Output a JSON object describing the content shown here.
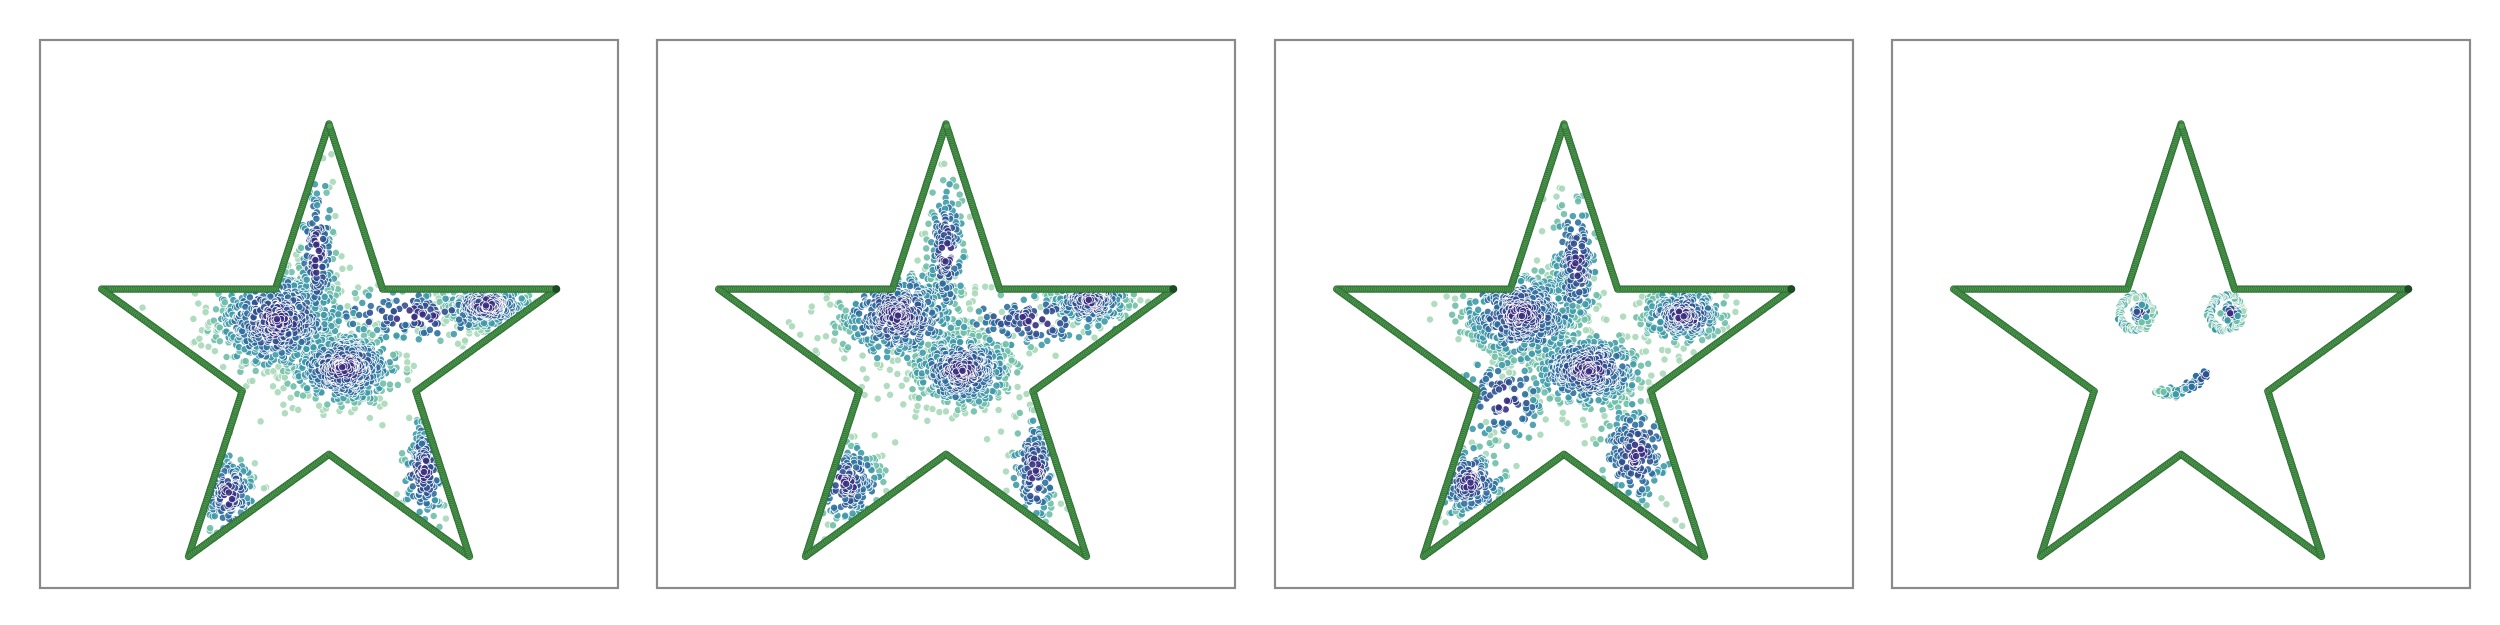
{
  "chart_data": [
    {
      "type": "scatter",
      "panel": "1",
      "title": "",
      "xlabel": "",
      "ylabel": "",
      "grid": false,
      "legend": "none",
      "series": [
        {
          "role": "star-boundary",
          "color": "#4f9a4f",
          "edge_color": "#2e6f34",
          "points": [
            [
              0.0,
              1.0
            ],
            [
              -0.2245,
              0.309
            ],
            [
              -0.9511,
              0.309
            ],
            [
              -0.3633,
              -0.118
            ],
            [
              -0.5878,
              -0.809
            ],
            [
              0.0,
              -0.382
            ],
            [
              0.5878,
              -0.809
            ],
            [
              0.3633,
              -0.118
            ],
            [
              0.9511,
              0.309
            ],
            [
              0.2245,
              0.309
            ],
            [
              0.0,
              1.0
            ]
          ]
        },
        {
          "role": "density-clusters",
          "colormap": [
            "#a8d8b8",
            "#6fbfa9",
            "#3f9aa8",
            "#2f6f9f",
            "#30508f",
            "#3a2f7f"
          ],
          "clusters": [
            {
              "cx": -0.215,
              "cy": 0.18,
              "sx": 0.14,
              "sy": 0.11,
              "n": 620
            },
            {
              "cx": 0.06,
              "cy": -0.02,
              "sx": 0.12,
              "sy": 0.08,
              "n": 560
            },
            {
              "cx": 0.66,
              "cy": 0.24,
              "sx": 0.09,
              "sy": 0.05,
              "n": 300
            },
            {
              "cx": -0.05,
              "cy": 0.45,
              "sx": 0.04,
              "sy": 0.17,
              "n": 180
            },
            {
              "cx": -0.42,
              "cy": -0.55,
              "sx": 0.06,
              "sy": 0.09,
              "n": 150
            },
            {
              "cx": 0.4,
              "cy": -0.45,
              "sx": 0.05,
              "sy": 0.12,
              "n": 160
            },
            {
              "cx": 0.35,
              "cy": 0.2,
              "sx": 0.2,
              "sy": 0.06,
              "n": 140
            }
          ]
        }
      ]
    },
    {
      "type": "scatter",
      "panel": "2",
      "title": "",
      "xlabel": "",
      "ylabel": "",
      "grid": false,
      "legend": "none",
      "series": [
        {
          "role": "star-boundary",
          "color": "#4f9a4f",
          "edge_color": "#2e6f34",
          "points": [
            [
              0.0,
              1.0
            ],
            [
              -0.2245,
              0.309
            ],
            [
              -0.9511,
              0.309
            ],
            [
              -0.3633,
              -0.118
            ],
            [
              -0.5878,
              -0.809
            ],
            [
              0.0,
              -0.382
            ],
            [
              0.5878,
              -0.809
            ],
            [
              0.3633,
              -0.118
            ],
            [
              0.9511,
              0.309
            ],
            [
              0.2245,
              0.309
            ],
            [
              0.0,
              1.0
            ]
          ]
        },
        {
          "role": "density-clusters",
          "colormap": [
            "#a8d8b8",
            "#6fbfa9",
            "#3f9aa8",
            "#2f6f9f",
            "#30508f",
            "#3a2f7f"
          ],
          "clusters": [
            {
              "cx": -0.2,
              "cy": 0.2,
              "sx": 0.13,
              "sy": 0.1,
              "n": 560
            },
            {
              "cx": 0.07,
              "cy": -0.03,
              "sx": 0.11,
              "sy": 0.08,
              "n": 480
            },
            {
              "cx": 0.6,
              "cy": 0.26,
              "sx": 0.09,
              "sy": 0.05,
              "n": 280
            },
            {
              "cx": 0.0,
              "cy": 0.46,
              "sx": 0.04,
              "sy": 0.16,
              "n": 180
            },
            {
              "cx": -0.42,
              "cy": -0.5,
              "sx": 0.08,
              "sy": 0.09,
              "n": 170
            },
            {
              "cx": 0.37,
              "cy": -0.45,
              "sx": 0.05,
              "sy": 0.12,
              "n": 150
            },
            {
              "cx": 0.38,
              "cy": 0.18,
              "sx": 0.2,
              "sy": 0.06,
              "n": 130
            }
          ]
        }
      ]
    },
    {
      "type": "scatter",
      "panel": "3",
      "title": "",
      "xlabel": "",
      "ylabel": "",
      "grid": false,
      "legend": "none",
      "series": [
        {
          "role": "star-boundary",
          "color": "#4f9a4f",
          "edge_color": "#2e6f34",
          "points": [
            [
              0.0,
              1.0
            ],
            [
              -0.2245,
              0.309
            ],
            [
              -0.9511,
              0.309
            ],
            [
              -0.3633,
              -0.118
            ],
            [
              -0.5878,
              -0.809
            ],
            [
              0.0,
              -0.382
            ],
            [
              0.5878,
              -0.809
            ],
            [
              0.3633,
              -0.118
            ],
            [
              0.9511,
              0.309
            ],
            [
              0.2245,
              0.309
            ],
            [
              0.0,
              1.0
            ]
          ]
        },
        {
          "role": "density-clusters",
          "colormap": [
            "#a8d8b8",
            "#6fbfa9",
            "#3f9aa8",
            "#2f6f9f",
            "#30508f",
            "#3a2f7f"
          ],
          "clusters": [
            {
              "cx": -0.18,
              "cy": 0.2,
              "sx": 0.13,
              "sy": 0.1,
              "n": 540
            },
            {
              "cx": 0.1,
              "cy": -0.03,
              "sx": 0.12,
              "sy": 0.08,
              "n": 520
            },
            {
              "cx": 0.5,
              "cy": 0.2,
              "sx": 0.09,
              "sy": 0.06,
              "n": 320
            },
            {
              "cx": 0.05,
              "cy": 0.42,
              "sx": 0.05,
              "sy": 0.14,
              "n": 200
            },
            {
              "cx": -0.4,
              "cy": -0.5,
              "sx": 0.08,
              "sy": 0.08,
              "n": 190
            },
            {
              "cx": 0.3,
              "cy": -0.38,
              "sx": 0.08,
              "sy": 0.12,
              "n": 190
            },
            {
              "cx": -0.25,
              "cy": -0.15,
              "sx": 0.1,
              "sy": 0.1,
              "n": 110
            }
          ]
        }
      ]
    },
    {
      "type": "scatter",
      "panel": "4",
      "title": "",
      "xlabel": "",
      "ylabel": "",
      "grid": false,
      "legend": "none",
      "series": [
        {
          "role": "star-boundary",
          "color": "#4f9a4f",
          "edge_color": "#2e6f34",
          "points": [
            [
              0.0,
              1.0
            ],
            [
              -0.2245,
              0.309
            ],
            [
              -0.9511,
              0.309
            ],
            [
              -0.3633,
              -0.118
            ],
            [
              -0.5878,
              -0.809
            ],
            [
              0.0,
              -0.382
            ],
            [
              0.5878,
              -0.809
            ],
            [
              0.3633,
              -0.118
            ],
            [
              0.9511,
              0.309
            ],
            [
              0.2245,
              0.309
            ],
            [
              0.0,
              1.0
            ]
          ]
        },
        {
          "role": "smiley-face",
          "colormap": [
            "#a8d8b8",
            "#6fbfa9",
            "#3f9aa8",
            "#2f6f9f",
            "#30508f",
            "#3a2f7f"
          ],
          "eyes": [
            {
              "cx": -0.19,
              "cy": 0.21,
              "ring_radius": 0.07,
              "pupil_radius": 0.035
            },
            {
              "cx": 0.19,
              "cy": 0.21,
              "ring_radius": 0.07,
              "pupil_radius": 0.035
            }
          ],
          "mouth": {
            "cx": 0.0,
            "cy": -0.08,
            "start": [
              -0.11,
              -0.12
            ],
            "end": [
              0.11,
              -0.04
            ],
            "dip": 0.035
          }
        }
      ]
    }
  ]
}
